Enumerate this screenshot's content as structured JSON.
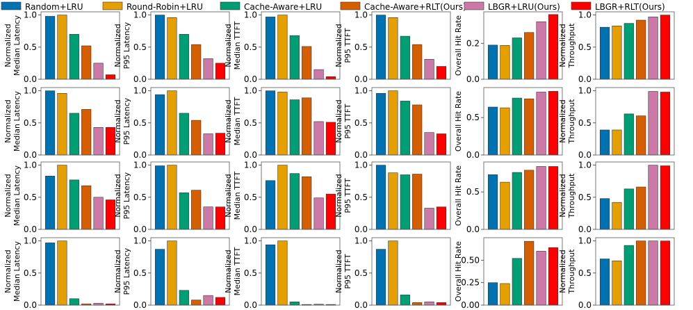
{
  "legend": [
    {
      "name": "Random+LRU",
      "color": "#0072b2"
    },
    {
      "name": "Round-Robin+LRU",
      "color": "#e69f00"
    },
    {
      "name": "Cache-Aware+LRU",
      "color": "#009e73"
    },
    {
      "name": "Cache-Aware+RLT(Ours)",
      "color": "#d55e00"
    },
    {
      "name": "LBGR+LRU(Ours)",
      "color": "#cc79a7"
    },
    {
      "name": "LBGR+RLT(Ours)",
      "color": "#ff0000"
    }
  ],
  "chart_data": [
    {
      "type": "bar",
      "row": 0,
      "col": 0,
      "ylabel": [
        "Normalized",
        "Median Latency"
      ],
      "ylim": [
        0,
        1.05
      ],
      "yticks": [
        "0.0",
        "0.5",
        "1.0"
      ],
      "categories": [
        "Random+LRU",
        "Round-Robin+LRU",
        "Cache-Aware+LRU",
        "Cache-Aware+RLT(Ours)",
        "LBGR+LRU(Ours)",
        "LBGR+RLT(Ours)"
      ],
      "values": [
        0.98,
        1.0,
        0.7,
        0.52,
        0.25,
        0.07
      ]
    },
    {
      "type": "bar",
      "row": 0,
      "col": 1,
      "ylabel": [
        "Normalized",
        "P95 Latency"
      ],
      "ylim": [
        0,
        1.05
      ],
      "yticks": [
        "0.0",
        "0.5",
        "1.0"
      ],
      "categories": [
        "Random+LRU",
        "Round-Robin+LRU",
        "Cache-Aware+LRU",
        "Cache-Aware+RLT(Ours)",
        "LBGR+LRU(Ours)",
        "LBGR+RLT(Ours)"
      ],
      "values": [
        1.0,
        0.96,
        0.7,
        0.54,
        0.32,
        0.25
      ]
    },
    {
      "type": "bar",
      "row": 0,
      "col": 2,
      "ylabel": [
        "Normalized",
        "Median TTFT"
      ],
      "ylim": [
        0,
        1.05
      ],
      "yticks": [
        "0.0",
        "0.5",
        "1.0"
      ],
      "categories": [
        "Random+LRU",
        "Round-Robin+LRU",
        "Cache-Aware+LRU",
        "Cache-Aware+RLT(Ours)",
        "LBGR+LRU(Ours)",
        "LBGR+RLT(Ours)"
      ],
      "values": [
        0.97,
        1.0,
        0.68,
        0.51,
        0.15,
        0.04
      ]
    },
    {
      "type": "bar",
      "row": 0,
      "col": 3,
      "ylabel": [
        "Normalized",
        "P95 TTFT"
      ],
      "ylim": [
        0,
        1.05
      ],
      "yticks": [
        "0.0",
        "0.5",
        "1.0"
      ],
      "categories": [
        "Random+LRU",
        "Round-Robin+LRU",
        "Cache-Aware+LRU",
        "Cache-Aware+RLT(Ours)",
        "LBGR+LRU(Ours)",
        "LBGR+RLT(Ours)"
      ],
      "values": [
        1.0,
        0.96,
        0.67,
        0.54,
        0.31,
        0.2
      ]
    },
    {
      "type": "bar",
      "row": 0,
      "col": 4,
      "ylabel": [
        "Overall Hit Rate"
      ],
      "ylim": [
        0,
        0.375
      ],
      "yticks": [
        "0.0",
        "0.2"
      ],
      "ytickvals": [
        0,
        0.2
      ],
      "categories": [
        "Random+LRU",
        "Round-Robin+LRU",
        "Cache-Aware+LRU",
        "Cache-Aware+RLT(Ours)",
        "LBGR+LRU(Ours)",
        "LBGR+RLT(Ours)"
      ],
      "values": [
        0.19,
        0.188,
        0.23,
        0.26,
        0.32,
        0.36
      ]
    },
    {
      "type": "bar",
      "row": 0,
      "col": 5,
      "ylabel": [
        "Normalized",
        "Throughput"
      ],
      "ylim": [
        0,
        1.05
      ],
      "yticks": [
        "0.0",
        "0.5",
        "1.0"
      ],
      "categories": [
        "Random+LRU",
        "Round-Robin+LRU",
        "Cache-Aware+LRU",
        "Cache-Aware+RLT(Ours)",
        "LBGR+LRU(Ours)",
        "LBGR+RLT(Ours)"
      ],
      "values": [
        0.81,
        0.83,
        0.87,
        0.92,
        0.97,
        1.0
      ]
    },
    {
      "type": "bar",
      "row": 1,
      "col": 0,
      "ylabel": [
        "Normalized",
        "Median Latency"
      ],
      "ylim": [
        0,
        1.05
      ],
      "yticks": [
        "0.0",
        "0.5",
        "1.0"
      ],
      "categories": [
        "Random+LRU",
        "Round-Robin+LRU",
        "Cache-Aware+LRU",
        "Cache-Aware+RLT(Ours)",
        "LBGR+LRU(Ours)",
        "LBGR+RLT(Ours)"
      ],
      "values": [
        1.0,
        0.96,
        0.65,
        0.71,
        0.43,
        0.43
      ]
    },
    {
      "type": "bar",
      "row": 1,
      "col": 1,
      "ylabel": [
        "Normalized",
        "P95 Latency"
      ],
      "ylim": [
        0,
        1.05
      ],
      "yticks": [
        "0.0",
        "0.5",
        "1.0"
      ],
      "categories": [
        "Random+LRU",
        "Round-Robin+LRU",
        "Cache-Aware+LRU",
        "Cache-Aware+RLT(Ours)",
        "LBGR+LRU(Ours)",
        "LBGR+RLT(Ours)"
      ],
      "values": [
        0.94,
        1.0,
        0.65,
        0.54,
        0.33,
        0.34
      ]
    },
    {
      "type": "bar",
      "row": 1,
      "col": 2,
      "ylabel": [
        "Normalized",
        "Median TTFT"
      ],
      "ylim": [
        0,
        1.05
      ],
      "yticks": [
        "0.0",
        "0.5",
        "1.0"
      ],
      "categories": [
        "Random+LRU",
        "Round-Robin+LRU",
        "Cache-Aware+LRU",
        "Cache-Aware+RLT(Ours)",
        "LBGR+LRU(Ours)",
        "LBGR+RLT(Ours)"
      ],
      "values": [
        1.0,
        0.98,
        0.86,
        0.89,
        0.52,
        0.51
      ]
    },
    {
      "type": "bar",
      "row": 1,
      "col": 3,
      "ylabel": [
        "Normalized",
        "P95 TTFT"
      ],
      "ylim": [
        0,
        1.05
      ],
      "yticks": [
        "0.0",
        "0.5",
        "1.0"
      ],
      "categories": [
        "Random+LRU",
        "Round-Robin+LRU",
        "Cache-Aware+LRU",
        "Cache-Aware+RLT(Ours)",
        "LBGR+LRU(Ours)",
        "LBGR+RLT(Ours)"
      ],
      "values": [
        0.96,
        1.0,
        0.84,
        0.78,
        0.35,
        0.33
      ]
    },
    {
      "type": "bar",
      "row": 1,
      "col": 4,
      "ylabel": [
        "Overall Hit Rate"
      ],
      "ylim": [
        0,
        0.9
      ],
      "yticks": [
        "0.0",
        "0.5"
      ],
      "ytickvals": [
        0,
        0.5
      ],
      "categories": [
        "Random+LRU",
        "Round-Robin+LRU",
        "Cache-Aware+LRU",
        "Cache-Aware+RLT(Ours)",
        "LBGR+LRU(Ours)",
        "LBGR+RLT(Ours)"
      ],
      "values": [
        0.64,
        0.63,
        0.76,
        0.75,
        0.84,
        0.85
      ]
    },
    {
      "type": "bar",
      "row": 1,
      "col": 5,
      "ylabel": [
        "Normalized",
        "Throughput"
      ],
      "ylim": [
        0,
        1.05
      ],
      "yticks": [
        "0.0",
        "0.5",
        "1.0"
      ],
      "categories": [
        "Random+LRU",
        "Round-Robin+LRU",
        "Cache-Aware+LRU",
        "Cache-Aware+RLT(Ours)",
        "LBGR+LRU(Ours)",
        "LBGR+RLT(Ours)"
      ],
      "values": [
        0.39,
        0.39,
        0.64,
        0.61,
        0.99,
        0.98
      ]
    },
    {
      "type": "bar",
      "row": 2,
      "col": 0,
      "ylabel": [
        "Normalized",
        "Median Latency"
      ],
      "ylim": [
        0,
        1.05
      ],
      "yticks": [
        "0.0",
        "0.5",
        "1.0"
      ],
      "categories": [
        "Random+LRU",
        "Round-Robin+LRU",
        "Cache-Aware+LRU",
        "Cache-Aware+RLT(Ours)",
        "LBGR+LRU(Ours)",
        "LBGR+RLT(Ours)"
      ],
      "values": [
        0.83,
        1.0,
        0.77,
        0.68,
        0.5,
        0.46
      ]
    },
    {
      "type": "bar",
      "row": 2,
      "col": 1,
      "ylabel": [
        "Normalized",
        "P95 Latency"
      ],
      "ylim": [
        0,
        1.05
      ],
      "yticks": [
        "0.0",
        "0.5",
        "1.0"
      ],
      "categories": [
        "Random+LRU",
        "Round-Robin+LRU",
        "Cache-Aware+LRU",
        "Cache-Aware+RLT(Ours)",
        "LBGR+LRU(Ours)",
        "LBGR+RLT(Ours)"
      ],
      "values": [
        0.99,
        1.0,
        0.57,
        0.61,
        0.35,
        0.35
      ]
    },
    {
      "type": "bar",
      "row": 2,
      "col": 2,
      "ylabel": [
        "Normalized",
        "Median TTFT"
      ],
      "ylim": [
        0,
        1.05
      ],
      "yticks": [
        "0.0",
        "0.5",
        "1.0"
      ],
      "categories": [
        "Random+LRU",
        "Round-Robin+LRU",
        "Cache-Aware+LRU",
        "Cache-Aware+RLT(Ours)",
        "LBGR+LRU(Ours)",
        "LBGR+RLT(Ours)"
      ],
      "values": [
        0.76,
        1.0,
        0.87,
        0.82,
        0.49,
        0.55
      ]
    },
    {
      "type": "bar",
      "row": 2,
      "col": 3,
      "ylabel": [
        "Normalized",
        "P95 TTFT"
      ],
      "ylim": [
        0,
        1.05
      ],
      "yticks": [
        "0.0",
        "0.5",
        "1.0"
      ],
      "categories": [
        "Random+LRU",
        "Round-Robin+LRU",
        "Cache-Aware+LRU",
        "Cache-Aware+RLT(Ours)",
        "LBGR+LRU(Ours)",
        "LBGR+RLT(Ours)"
      ],
      "values": [
        1.0,
        0.88,
        0.85,
        0.86,
        0.33,
        0.35
      ]
    },
    {
      "type": "bar",
      "row": 2,
      "col": 4,
      "ylabel": [
        "Overall Hit Rate"
      ],
      "ylim": [
        0,
        0.9
      ],
      "yticks": [
        "0.0",
        "0.5"
      ],
      "ytickvals": [
        0,
        0.5
      ],
      "categories": [
        "Random+LRU",
        "Round-Robin+LRU",
        "Cache-Aware+LRU",
        "Cache-Aware+RLT(Ours)",
        "LBGR+LRU(Ours)",
        "LBGR+RLT(Ours)"
      ],
      "values": [
        0.73,
        0.63,
        0.76,
        0.79,
        0.84,
        0.84
      ]
    },
    {
      "type": "bar",
      "row": 2,
      "col": 5,
      "ylabel": [
        "Normalized",
        "Throughput"
      ],
      "ylim": [
        0,
        1.05
      ],
      "yticks": [
        "0.0",
        "0.5",
        "1.0"
      ],
      "categories": [
        "Random+LRU",
        "Round-Robin+LRU",
        "Cache-Aware+LRU",
        "Cache-Aware+RLT(Ours)",
        "LBGR+LRU(Ours)",
        "LBGR+RLT(Ours)"
      ],
      "values": [
        0.48,
        0.42,
        0.63,
        0.66,
        1.0,
        0.99
      ]
    },
    {
      "type": "bar",
      "row": 3,
      "col": 0,
      "ylabel": [
        "Normalized",
        "Median Latency"
      ],
      "ylim": [
        0,
        1.05
      ],
      "yticks": [
        "0.0",
        "0.5",
        "1.0"
      ],
      "categories": [
        "Random+LRU",
        "Round-Robin+LRU",
        "Cache-Aware+LRU",
        "Cache-Aware+RLT(Ours)",
        "LBGR+LRU(Ours)",
        "LBGR+RLT(Ours)"
      ],
      "values": [
        0.97,
        1.0,
        0.1,
        0.02,
        0.03,
        0.02
      ]
    },
    {
      "type": "bar",
      "row": 3,
      "col": 1,
      "ylabel": [
        "Normalized",
        "P95 Latency"
      ],
      "ylim": [
        0,
        1.05
      ],
      "yticks": [
        "0.0",
        "0.5",
        "1.0"
      ],
      "categories": [
        "Random+LRU",
        "Round-Robin+LRU",
        "Cache-Aware+LRU",
        "Cache-Aware+RLT(Ours)",
        "LBGR+LRU(Ours)",
        "LBGR+RLT(Ours)"
      ],
      "values": [
        0.87,
        1.0,
        0.23,
        0.08,
        0.15,
        0.12
      ]
    },
    {
      "type": "bar",
      "row": 3,
      "col": 2,
      "ylabel": [
        "Normalized",
        "Median TTFT"
      ],
      "ylim": [
        0,
        1.05
      ],
      "yticks": [
        "0.0",
        "0.5",
        "1.0"
      ],
      "categories": [
        "Random+LRU",
        "Round-Robin+LRU",
        "Cache-Aware+LRU",
        "Cache-Aware+RLT(Ours)",
        "LBGR+LRU(Ours)",
        "LBGR+RLT(Ours)"
      ],
      "values": [
        0.94,
        1.0,
        0.05,
        0.01,
        0.015,
        0.01
      ]
    },
    {
      "type": "bar",
      "row": 3,
      "col": 3,
      "ylabel": [
        "Normalized",
        "P95 TTFT"
      ],
      "ylim": [
        0,
        1.05
      ],
      "yticks": [
        "0.0",
        "0.5",
        "1.0"
      ],
      "categories": [
        "Random+LRU",
        "Round-Robin+LRU",
        "Cache-Aware+LRU",
        "Cache-Aware+RLT(Ours)",
        "LBGR+LRU(Ours)",
        "LBGR+RLT(Ours)"
      ],
      "values": [
        0.87,
        1.0,
        0.16,
        0.04,
        0.05,
        0.04
      ]
    },
    {
      "type": "bar",
      "row": 3,
      "col": 4,
      "ylabel": [
        "Overall Hit Rate"
      ],
      "ylim": [
        0,
        0.75
      ],
      "yticks": [
        "0.00",
        "0.25",
        "0.50"
      ],
      "ytickvals": [
        0,
        0.25,
        0.5
      ],
      "categories": [
        "Random+LRU",
        "Round-Robin+LRU",
        "Cache-Aware+LRU",
        "Cache-Aware+RLT(Ours)",
        "LBGR+LRU(Ours)",
        "LBGR+RLT(Ours)"
      ],
      "values": [
        0.25,
        0.24,
        0.52,
        0.71,
        0.6,
        0.64
      ]
    },
    {
      "type": "bar",
      "row": 3,
      "col": 5,
      "ylabel": [
        "Normalized",
        "Throughput"
      ],
      "ylim": [
        0,
        1.05
      ],
      "yticks": [
        "0.0",
        "0.5",
        "1.0"
      ],
      "categories": [
        "Random+LRU",
        "Round-Robin+LRU",
        "Cache-Aware+LRU",
        "Cache-Aware+RLT(Ours)",
        "LBGR+LRU(Ours)",
        "LBGR+RLT(Ours)"
      ],
      "values": [
        0.72,
        0.69,
        0.93,
        1.0,
        1.0,
        1.0
      ]
    }
  ]
}
